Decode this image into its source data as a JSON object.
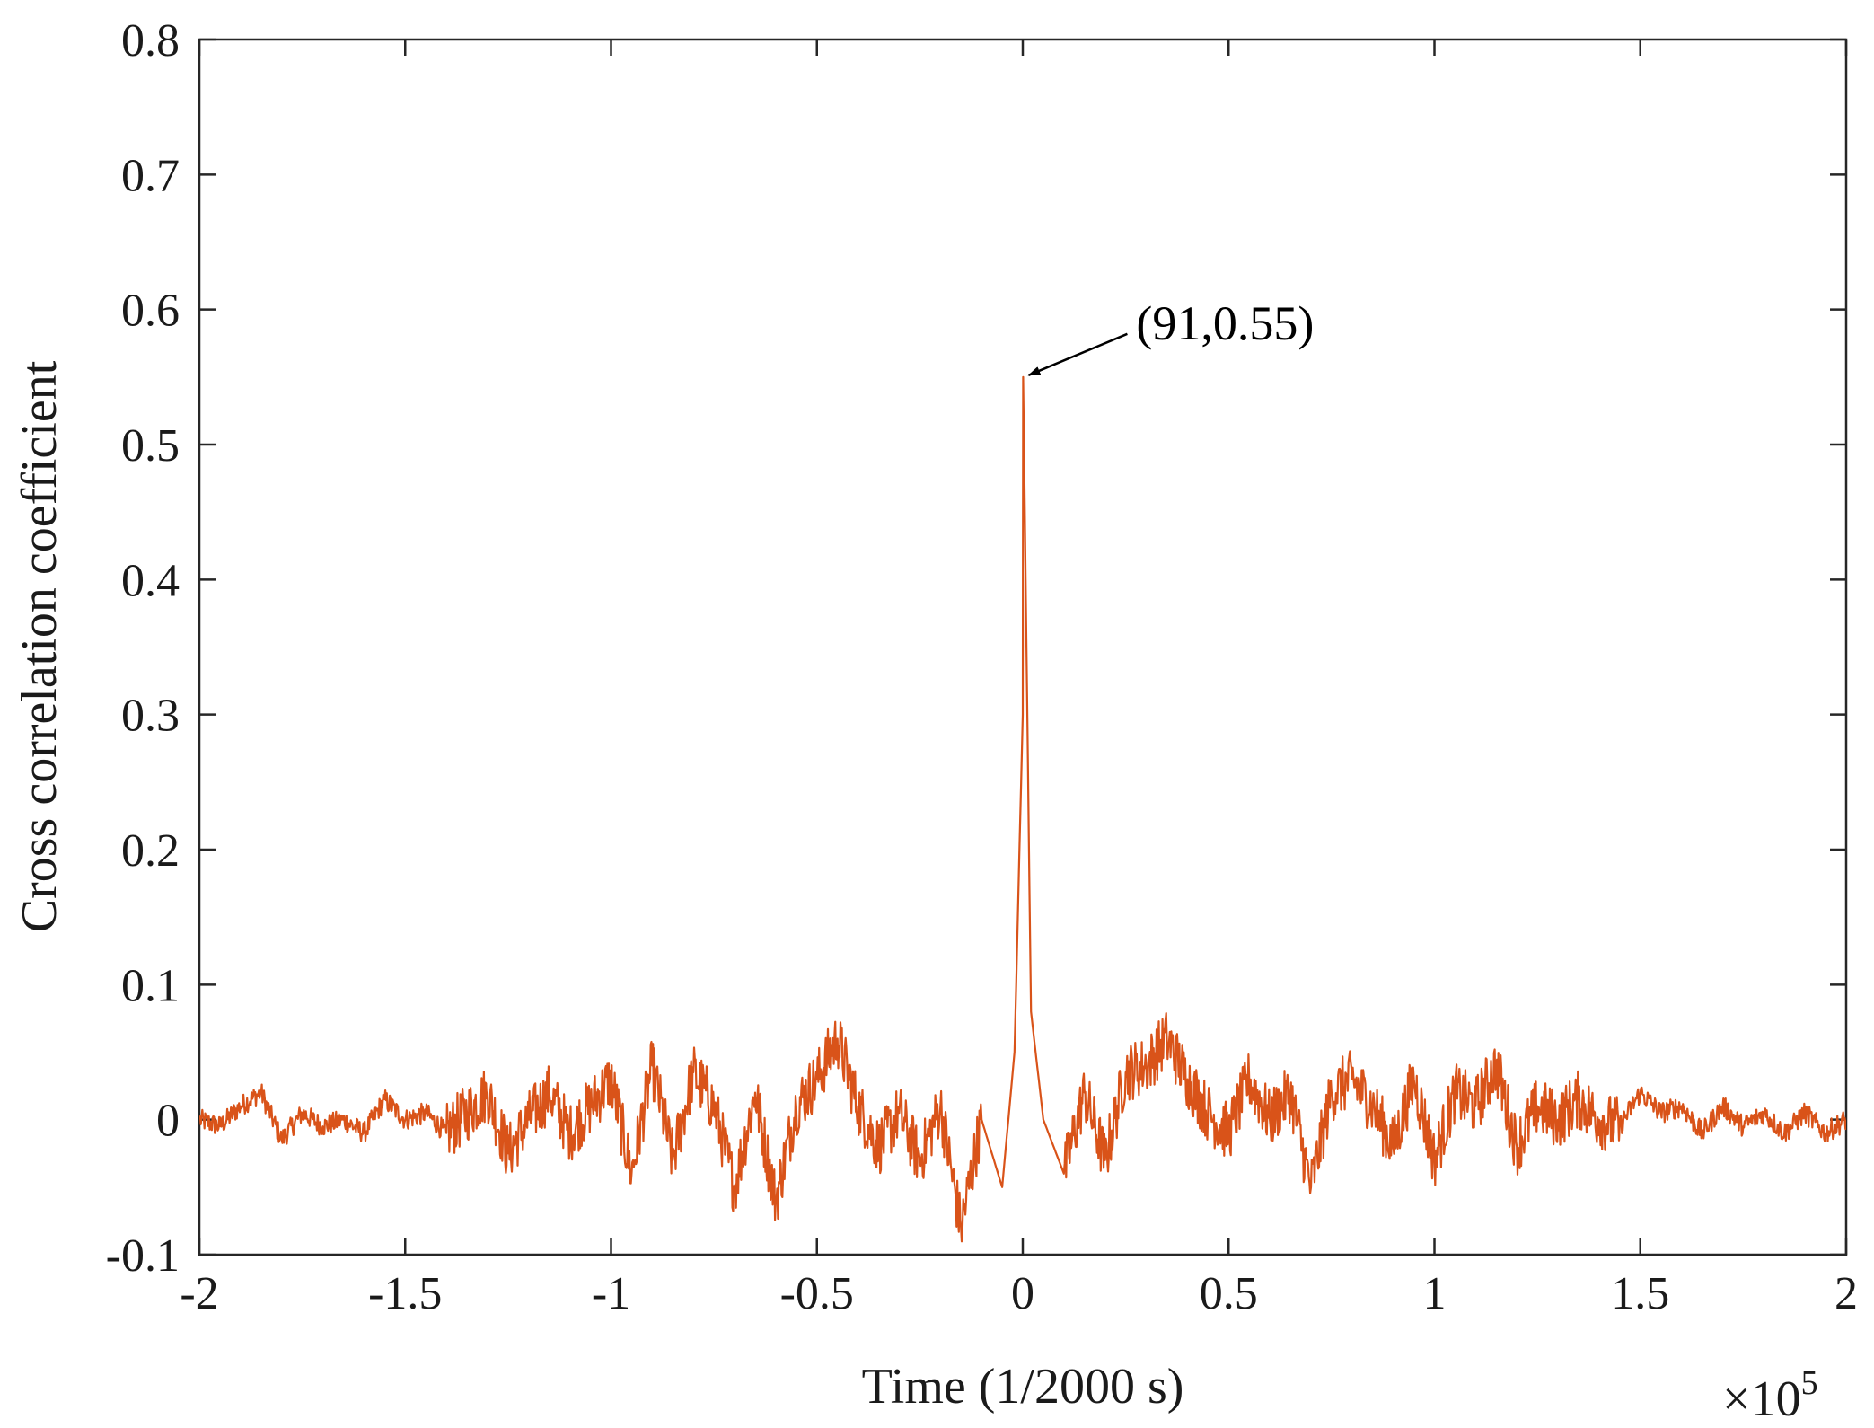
{
  "chart_data": {
    "type": "line",
    "xlabel": "Time (1/2000 s)",
    "ylabel": "Cross correlation coefficient",
    "x_exponent_base": "×10",
    "x_exponent_power": "5",
    "xlim": [
      -200000,
      200000
    ],
    "ylim": [
      -0.1,
      0.8
    ],
    "grid": false,
    "legend": "none",
    "x_tick_labels": [
      "-2",
      "-1.5",
      "-1",
      "-0.5",
      "0",
      "0.5",
      "1",
      "1.5",
      "2"
    ],
    "x_tick_values": [
      -200000,
      -150000,
      -100000,
      -50000,
      0,
      50000,
      100000,
      150000,
      200000
    ],
    "y_tick_labels": [
      "-0.1",
      "0",
      "0.1",
      "0.2",
      "0.3",
      "0.4",
      "0.5",
      "0.6",
      "0.7",
      "0.8"
    ],
    "y_tick_values": [
      -0.1,
      0,
      0.1,
      0.2,
      0.3,
      0.4,
      0.5,
      0.6,
      0.7,
      0.8
    ],
    "series": [
      {
        "color": "#d95319",
        "x": [
          -200000,
          -195000,
          -190000,
          -185000,
          -180000,
          -175000,
          -170000,
          -165000,
          -160000,
          -155000,
          -150000,
          -145000,
          -140000,
          -135000,
          -130000,
          -125000,
          -120000,
          -115000,
          -110000,
          -105000,
          -100000,
          -95000,
          -90000,
          -85000,
          -80000,
          -75000,
          -70000,
          -65000,
          -60000,
          -55000,
          -50000,
          -45000,
          -40000,
          -35000,
          -30000,
          -25000,
          -20000,
          -15000,
          -10000,
          -5000,
          -2000,
          0,
          91,
          2000,
          5000,
          10000,
          15000,
          20000,
          25000,
          30000,
          35000,
          40000,
          45000,
          50000,
          55000,
          60000,
          65000,
          70000,
          75000,
          80000,
          85000,
          90000,
          95000,
          100000,
          105000,
          110000,
          115000,
          120000,
          125000,
          130000,
          135000,
          140000,
          145000,
          150000,
          155000,
          160000,
          165000,
          170000,
          175000,
          180000,
          185000,
          190000,
          195000,
          200000
        ],
        "y": [
          0,
          -0.005,
          0.01,
          0.02,
          -0.015,
          0.005,
          -0.005,
          0.0,
          -0.01,
          0.015,
          0.0,
          0.005,
          -0.01,
          0.005,
          0.02,
          -0.025,
          0.0,
          0.02,
          -0.01,
          0.01,
          0.03,
          -0.04,
          0.04,
          -0.03,
          0.035,
          0.01,
          -0.05,
          0.02,
          -0.06,
          0.01,
          0.03,
          0.06,
          0.01,
          -0.02,
          0.005,
          -0.03,
          0.01,
          -0.08,
          0.0,
          -0.05,
          0.05,
          0.3,
          0.55,
          0.08,
          0.0,
          -0.04,
          0.02,
          -0.03,
          0.035,
          0.04,
          0.06,
          0.03,
          0.005,
          -0.01,
          0.03,
          0.0,
          0.02,
          -0.05,
          0.02,
          0.03,
          0.01,
          -0.02,
          0.03,
          -0.03,
          0.02,
          0.01,
          0.04,
          -0.02,
          0.01,
          0.0,
          0.015,
          0.0,
          -0.005,
          0.02,
          0.005,
          0.01,
          -0.01,
          0.01,
          -0.005,
          0.005,
          -0.01,
          0.005,
          -0.01,
          0.0
        ]
      }
    ],
    "annotation": {
      "text": "(91,0.55)",
      "x": 91,
      "y": 0.55
    }
  }
}
